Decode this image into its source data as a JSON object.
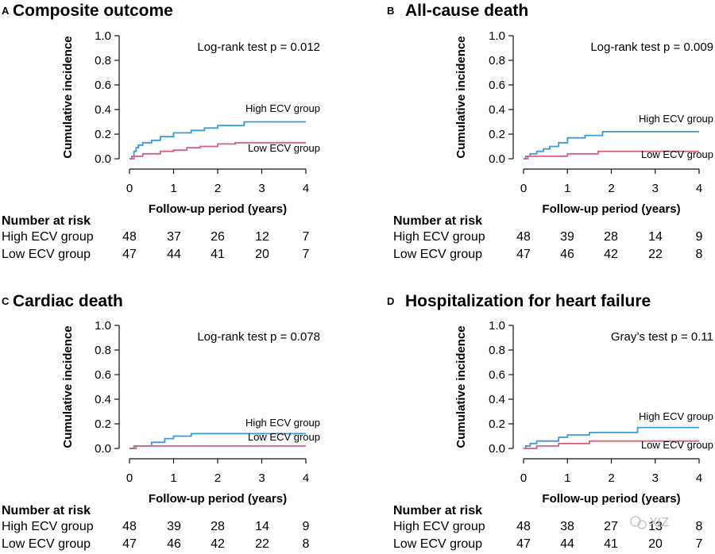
{
  "colors": {
    "high": "#3a9ad9",
    "low": "#d9607a",
    "axis": "#111111"
  },
  "watermark": "XIZ",
  "chart_data": [
    {
      "type": "line",
      "letter": "A",
      "title": "Composite outcome",
      "xlabel": "Follow-up period (years)",
      "ylabel": "Cumulative incidence",
      "xlim": [
        0,
        4
      ],
      "ylim": [
        0,
        1
      ],
      "x_ticks": [
        "0",
        "1",
        "2",
        "3",
        "4"
      ],
      "y_ticks": [
        "0.0",
        "0.2",
        "0.4",
        "0.6",
        "0.8",
        "1.0"
      ],
      "test_text": "Log-rank test p = 0.012",
      "series": [
        {
          "name": "High ECV group",
          "color": "#3a9ad9",
          "points": [
            [
              0,
              0
            ],
            [
              0.05,
              0.02
            ],
            [
              0.1,
              0.06
            ],
            [
              0.15,
              0.09
            ],
            [
              0.2,
              0.11
            ],
            [
              0.3,
              0.13
            ],
            [
              0.5,
              0.15
            ],
            [
              0.7,
              0.18
            ],
            [
              1.0,
              0.21
            ],
            [
              1.4,
              0.23
            ],
            [
              1.7,
              0.25
            ],
            [
              2.0,
              0.27
            ],
            [
              2.6,
              0.3
            ],
            [
              4.0,
              0.3
            ]
          ]
        },
        {
          "name": "Low ECV group",
          "color": "#d9607a",
          "points": [
            [
              0,
              0
            ],
            [
              0.1,
              0.02
            ],
            [
              0.3,
              0.04
            ],
            [
              0.7,
              0.06
            ],
            [
              1.0,
              0.07
            ],
            [
              1.3,
              0.09
            ],
            [
              1.6,
              0.1
            ],
            [
              2.0,
              0.12
            ],
            [
              2.4,
              0.13
            ],
            [
              4.0,
              0.13
            ]
          ]
        }
      ],
      "risk_table": {
        "heading": "Number at risk",
        "rows": [
          {
            "label": "High ECV group",
            "values": [
              "48",
              "37",
              "26",
              "12",
              "7"
            ]
          },
          {
            "label": "Low ECV group",
            "values": [
              "47",
              "44",
              "41",
              "20",
              "7"
            ]
          }
        ]
      }
    },
    {
      "type": "line",
      "letter": "B",
      "title": "All-cause death",
      "xlabel": "Follow-up period (years)",
      "ylabel": "Cumulative incidence",
      "xlim": [
        0,
        4
      ],
      "ylim": [
        0,
        1
      ],
      "x_ticks": [
        "0",
        "1",
        "2",
        "3",
        "4"
      ],
      "y_ticks": [
        "0.0",
        "0.2",
        "0.4",
        "0.6",
        "0.8",
        "1.0"
      ],
      "test_text": "Log-rank test p = 0.009",
      "series": [
        {
          "name": "High ECV group",
          "color": "#3a9ad9",
          "points": [
            [
              0,
              0
            ],
            [
              0.05,
              0.02
            ],
            [
              0.15,
              0.04
            ],
            [
              0.3,
              0.06
            ],
            [
              0.45,
              0.08
            ],
            [
              0.6,
              0.1
            ],
            [
              0.8,
              0.13
            ],
            [
              1.0,
              0.17
            ],
            [
              1.4,
              0.19
            ],
            [
              1.8,
              0.22
            ],
            [
              4.0,
              0.22
            ]
          ]
        },
        {
          "name": "Low ECV group",
          "color": "#d9607a",
          "points": [
            [
              0,
              0
            ],
            [
              0.1,
              0.02
            ],
            [
              1.0,
              0.04
            ],
            [
              1.7,
              0.06
            ],
            [
              4.0,
              0.06
            ]
          ]
        }
      ],
      "risk_table": {
        "heading": "Number at risk",
        "rows": [
          {
            "label": "High ECV group",
            "values": [
              "48",
              "39",
              "28",
              "14",
              "9"
            ]
          },
          {
            "label": "Low ECV group",
            "values": [
              "47",
              "46",
              "42",
              "22",
              "8"
            ]
          }
        ]
      }
    },
    {
      "type": "line",
      "letter": "C",
      "title": "Cardiac death",
      "xlabel": "Follow-up period (years)",
      "ylabel": "Cumulative incidence",
      "xlim": [
        0,
        4
      ],
      "ylim": [
        0,
        1
      ],
      "x_ticks": [
        "0",
        "1",
        "2",
        "3",
        "4"
      ],
      "y_ticks": [
        "0.0",
        "0.2",
        "0.4",
        "0.6",
        "0.8",
        "1.0"
      ],
      "test_text": "Log-rank test p = 0.078",
      "series": [
        {
          "name": "High ECV group",
          "color": "#3a9ad9",
          "points": [
            [
              0,
              0
            ],
            [
              0.1,
              0.02
            ],
            [
              0.5,
              0.05
            ],
            [
              0.8,
              0.08
            ],
            [
              1.0,
              0.1
            ],
            [
              1.4,
              0.12
            ],
            [
              4.0,
              0.12
            ]
          ]
        },
        {
          "name": "Low ECV group",
          "color": "#d9607a",
          "points": [
            [
              0,
              0
            ],
            [
              0.15,
              0.02
            ],
            [
              4.0,
              0.02
            ]
          ]
        }
      ],
      "risk_table": {
        "heading": "Number at risk",
        "rows": [
          {
            "label": "High ECV group",
            "values": [
              "48",
              "39",
              "28",
              "14",
              "9"
            ]
          },
          {
            "label": "Low ECV group",
            "values": [
              "47",
              "46",
              "42",
              "22",
              "8"
            ]
          }
        ]
      }
    },
    {
      "type": "line",
      "letter": "D",
      "title": "Hospitalization for heart failure",
      "xlabel": "Follow-up period (years)",
      "ylabel": "Cumulative incidence",
      "xlim": [
        0,
        4
      ],
      "ylim": [
        0,
        1
      ],
      "x_ticks": [
        "0",
        "1",
        "2",
        "3",
        "4"
      ],
      "y_ticks": [
        "0.0",
        "0.2",
        "0.4",
        "0.6",
        "0.8",
        "1.0"
      ],
      "test_text": "Gray’s test p = 0.11",
      "series": [
        {
          "name": "High ECV group",
          "color": "#3a9ad9",
          "points": [
            [
              0,
              0
            ],
            [
              0.05,
              0.02
            ],
            [
              0.15,
              0.04
            ],
            [
              0.3,
              0.06
            ],
            [
              0.8,
              0.09
            ],
            [
              1.0,
              0.11
            ],
            [
              1.5,
              0.13
            ],
            [
              2.6,
              0.17
            ],
            [
              4.0,
              0.17
            ]
          ]
        },
        {
          "name": "Low ECV group",
          "color": "#d9607a",
          "points": [
            [
              0,
              0
            ],
            [
              0.3,
              0.02
            ],
            [
              0.8,
              0.04
            ],
            [
              1.5,
              0.06
            ],
            [
              4.0,
              0.06
            ]
          ]
        }
      ],
      "risk_table": {
        "heading": "Number at risk",
        "rows": [
          {
            "label": "High ECV group",
            "values": [
              "48",
              "38",
              "27",
              "13",
              "8"
            ]
          },
          {
            "label": "Low ECV group",
            "values": [
              "47",
              "44",
              "41",
              "20",
              "7"
            ]
          }
        ]
      }
    }
  ]
}
